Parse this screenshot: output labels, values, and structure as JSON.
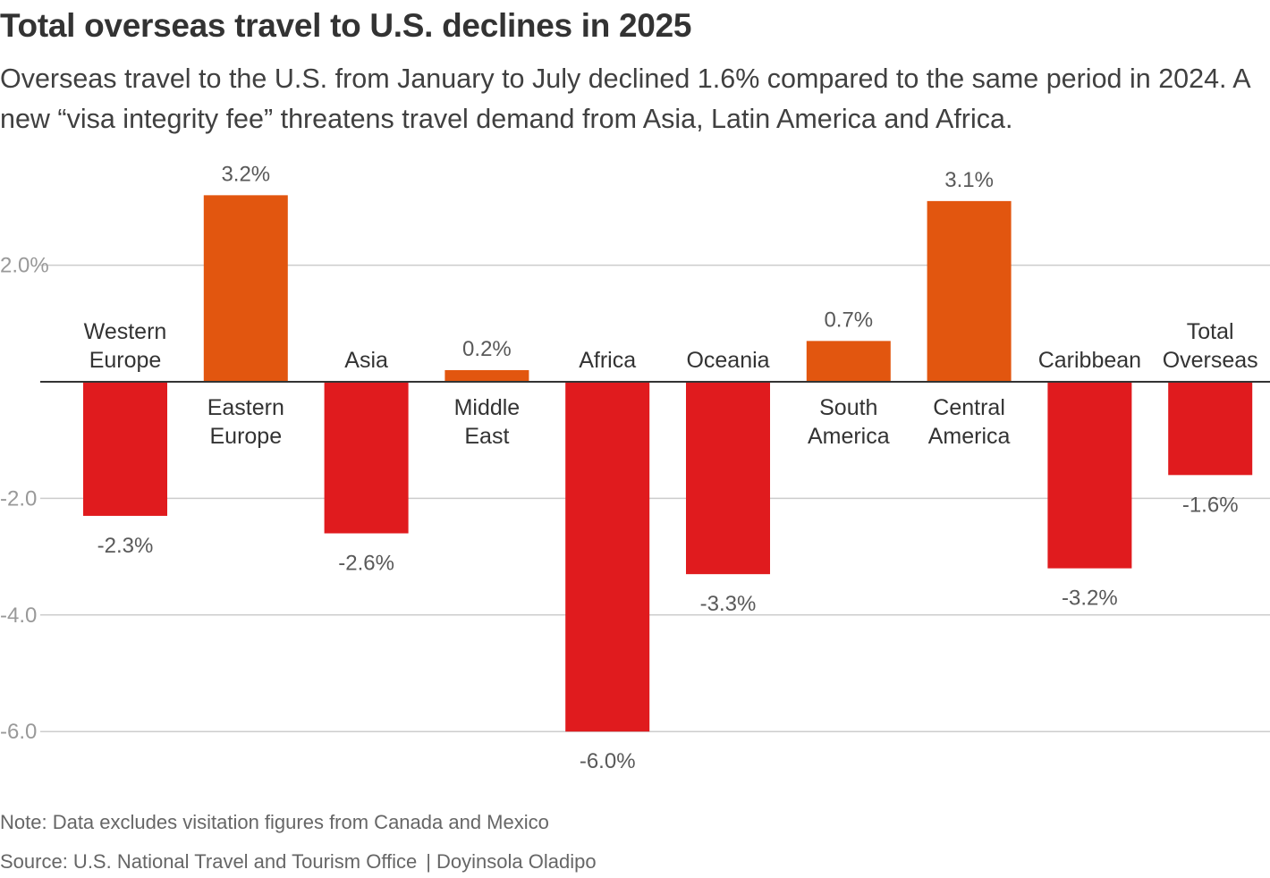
{
  "title": "Total overseas travel to U.S. declines in 2025",
  "subtitle": "Overseas travel to the U.S. from January to July declined 1.6% compared to the same period in 2024. A new “visa integrity fee” threatens travel demand from Asia, Latin America and Africa.",
  "note": "Note: Data excludes visitation figures from Canada and Mexico",
  "source": "Source: U.S. National Travel and Tourism Office",
  "separator": "|",
  "author": "Doyinsola Oladipo",
  "colors": {
    "positive": "#e2560f",
    "negative": "#e01b1e",
    "gridline": "#cccccc",
    "zero_line": "#333333",
    "tick_label": "#999999",
    "value_label": "#595959",
    "category_label": "#333333"
  },
  "chart_data": {
    "type": "bar",
    "unit": "%",
    "categories": [
      [
        "Western",
        "Europe"
      ],
      [
        "Eastern",
        "Europe"
      ],
      [
        "Asia"
      ],
      [
        "Middle",
        "East"
      ],
      [
        "Africa"
      ],
      [
        "Oceania"
      ],
      [
        "South",
        "America"
      ],
      [
        "Central",
        "America"
      ],
      [
        "Caribbean"
      ],
      [
        "Total",
        "Overseas"
      ]
    ],
    "values": [
      -2.3,
      3.2,
      -2.6,
      0.2,
      -6.0,
      -3.3,
      0.7,
      3.1,
      -3.2,
      -1.6
    ],
    "value_labels": [
      "-2.3%",
      "3.2%",
      "-2.6%",
      "0.2%",
      "-6.0%",
      "-3.3%",
      "0.7%",
      "3.1%",
      "-3.2%",
      "-1.6%"
    ],
    "y_ticks": [
      2.0,
      -2.0,
      -4.0,
      -6.0
    ],
    "y_tick_labels": [
      "2.0%",
      "-2.0",
      "-4.0",
      "-6.0"
    ],
    "ylim": [
      -6.0,
      3.2
    ],
    "xlabel": "",
    "ylabel": "",
    "grid": true,
    "legend": "none"
  }
}
